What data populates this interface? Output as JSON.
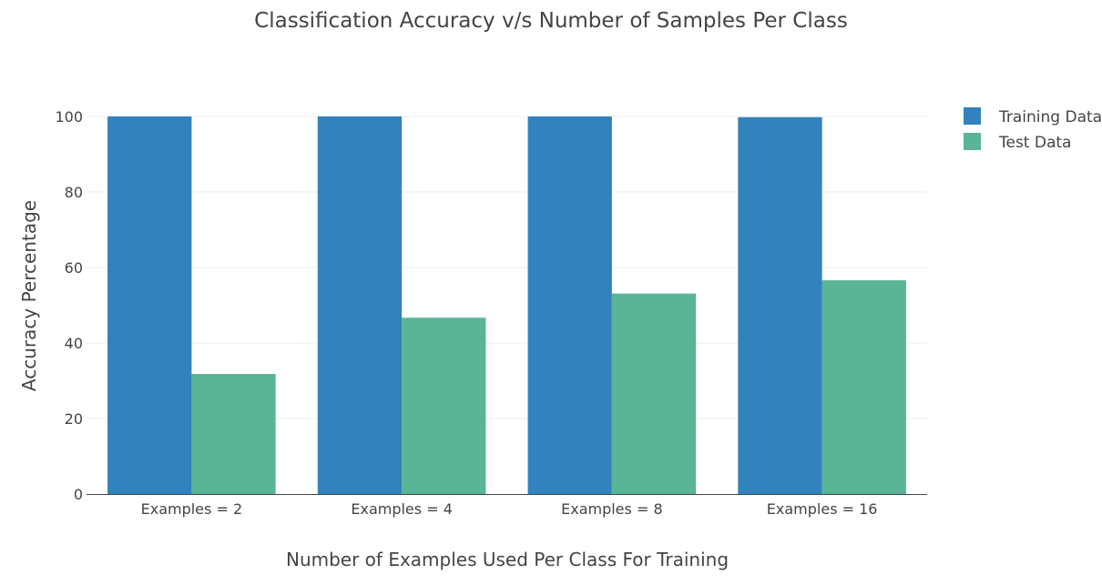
{
  "chart_data": {
    "type": "bar",
    "title": "Classification Accuracy v/s Number of Samples Per Class",
    "xlabel": "Number of Examples Used Per Class For Training",
    "ylabel": "Accuracy Percentage",
    "categories": [
      "Examples = 2",
      "Examples = 4",
      "Examples = 8",
      "Examples = 16"
    ],
    "series": [
      {
        "name": "Training Data",
        "color": "#3182bd",
        "values": [
          100,
          100,
          100,
          99.8
        ]
      },
      {
        "name": "Test Data",
        "color": "#5ab596",
        "values": [
          31.8,
          46.7,
          53.1,
          56.6
        ]
      }
    ],
    "ylim": [
      0,
      100
    ],
    "yticks": [
      0,
      20,
      40,
      60,
      80,
      100
    ],
    "grid": true,
    "legend_position": "top-right"
  }
}
